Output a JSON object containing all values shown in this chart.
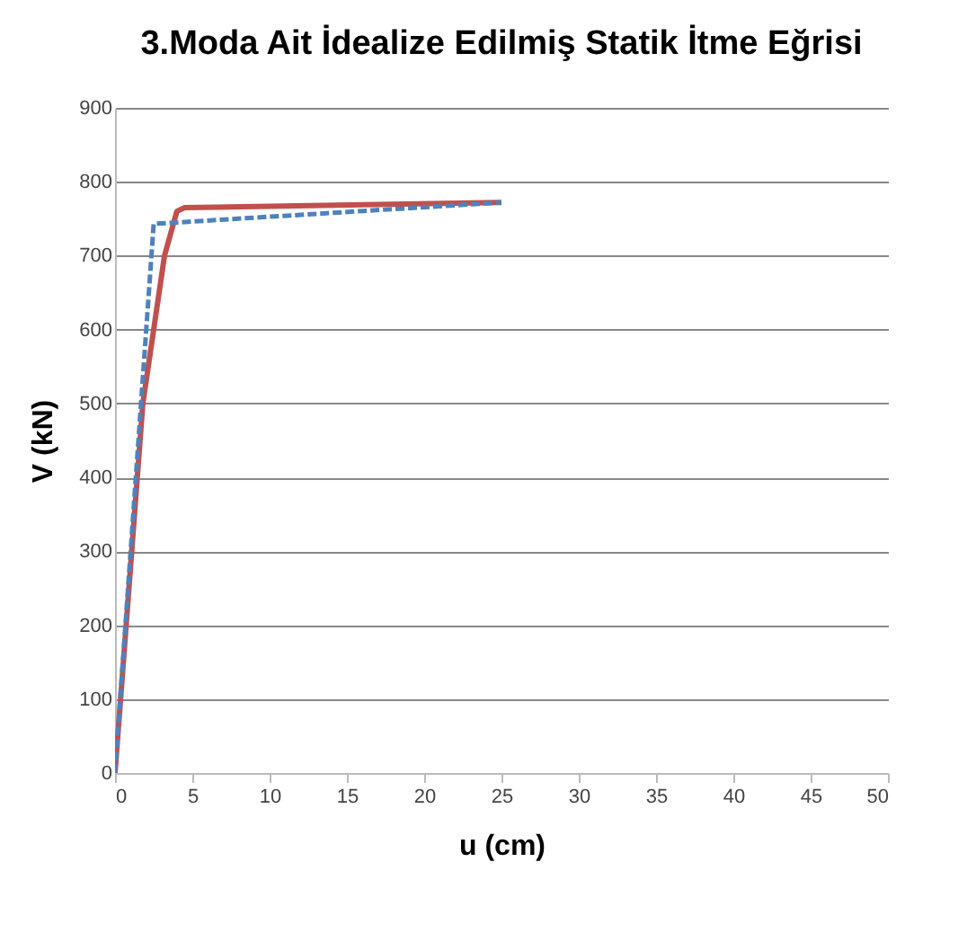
{
  "chart_data": {
    "type": "line",
    "title": "3.Moda Ait İdealize Edilmiş Statik İtme Eğrisi",
    "xlabel": "u (cm)",
    "ylabel": "V (kN)",
    "xlim": [
      0,
      50
    ],
    "xticks": [
      0,
      5,
      10,
      15,
      20,
      25,
      30,
      35,
      40,
      45,
      50
    ],
    "ylim": [
      0,
      900
    ],
    "yticks": [
      0,
      100,
      200,
      300,
      400,
      500,
      600,
      700,
      800,
      900
    ],
    "grid": "y",
    "legend": false,
    "marker": "none",
    "series": [
      {
        "color": "#c0504d",
        "line_style": "solid",
        "x": [
          0,
          1.8,
          3.2,
          4.0,
          4.5,
          25
        ],
        "values": [
          0,
          500,
          700,
          760,
          765,
          772
        ]
      },
      {
        "color": "#4f81bd",
        "line_style": "dashed",
        "x": [
          0,
          2.5,
          25
        ],
        "values": [
          0,
          743,
          772
        ]
      }
    ]
  }
}
